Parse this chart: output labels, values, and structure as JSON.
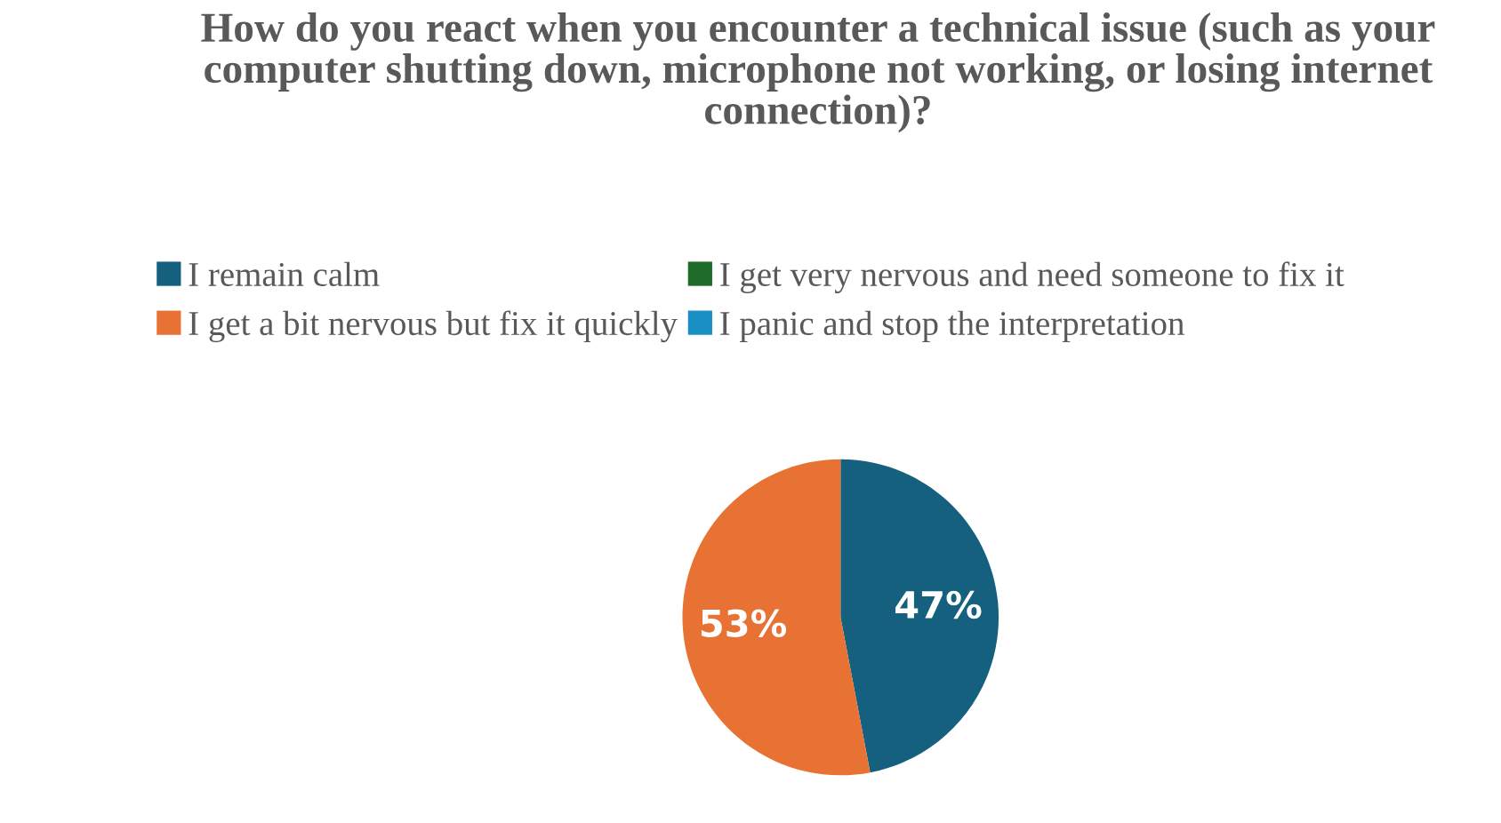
{
  "chart_data": {
    "type": "pie",
    "title": "How do you react when you encounter a technical issue (such as your computer shutting down, microphone not working, or losing internet connection)?",
    "categories": [
      "I remain calm",
      "I get a bit nervous but fix it quickly",
      "I get very nervous and need someone to fix it",
      "I panic and stop the interpretation"
    ],
    "values": [
      47,
      53,
      0,
      0
    ],
    "colors": [
      "#15607f",
      "#e87233",
      "#1e6b2a",
      "#1a8fc4"
    ],
    "value_labels": [
      "47%",
      "53%",
      null,
      null
    ],
    "legend": "top"
  }
}
